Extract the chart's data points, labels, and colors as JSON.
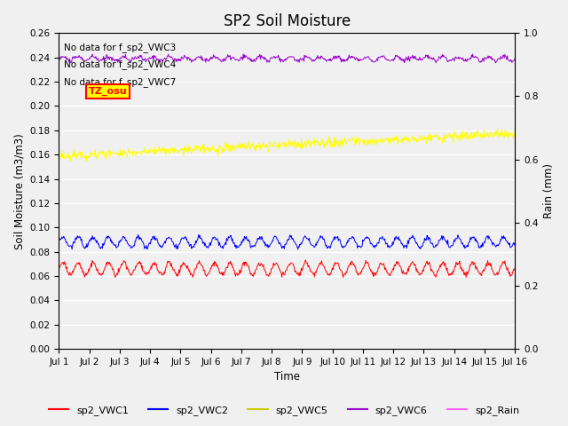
{
  "title": "SP2 Soil Moisture",
  "xlabel": "Time",
  "ylabel_left": "Soil Moisture (m3/m3)",
  "ylabel_right": "Rain (mm)",
  "ylim_left": [
    0,
    0.26
  ],
  "ylim_right": [
    0.0,
    1.0
  ],
  "x_ticks_labels": [
    "Jul 1",
    "Jul 2",
    "Jul 3",
    "Jul 4",
    "Jul 5",
    "Jul 6",
    "Jul 7",
    "Jul 8",
    "Jul 9",
    "Jul 10",
    "Jul 11",
    "Jul 12",
    "Jul 13",
    "Jul 14",
    "Jul 15",
    "Jul 16"
  ],
  "n_days": 16,
  "no_data_texts": [
    "No data for f_sp2_VWC3",
    "No data for f_sp2_VWC4",
    "No data for f_sp2_VWC7"
  ],
  "tz_label": "TZ_osu",
  "colors": {
    "VWC1": "#ff0000",
    "VWC2": "#0000ff",
    "VWC5": "#ffff00",
    "VWC6": "#9900cc",
    "Rain": "#ff66ff"
  },
  "legend_colors": {
    "VWC1": "#ff0000",
    "VWC2": "#0000ff",
    "VWC5": "#cccc00",
    "VWC6": "#9900cc",
    "Rain": "#ff66ff"
  },
  "legend_labels": [
    "sp2_VWC1",
    "sp2_VWC2",
    "sp2_VWC5",
    "sp2_VWC6",
    "sp2_Rain"
  ],
  "background_color": "#f0f0f0",
  "plot_bg_color": "#f0f0f0",
  "grid_color": "#ffffff",
  "title_fontsize": 12,
  "tick_fontsize": 7.5,
  "label_fontsize": 8.5
}
